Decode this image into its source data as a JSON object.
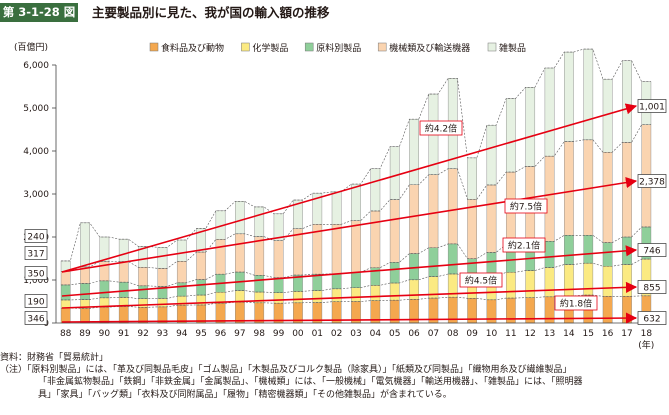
{
  "figure": {
    "number": "第 3-1-28 図",
    "title": "主要製品別に見た、我が国の輸入額の推移"
  },
  "chart_data": {
    "type": "bar",
    "stacked": true,
    "unit_label": "(百億円)",
    "xunit_label": "(年)",
    "categories": [
      "88",
      "89",
      "90",
      "91",
      "92",
      "93",
      "94",
      "95",
      "96",
      "97",
      "98",
      "99",
      "00",
      "01",
      "02",
      "03",
      "04",
      "05",
      "06",
      "07",
      "08",
      "09",
      "10",
      "11",
      "12",
      "13",
      "14",
      "15",
      "16",
      "17",
      "18"
    ],
    "ylim": [
      0,
      6000
    ],
    "yticks": [
      0,
      1000,
      2000,
      3000,
      4000,
      5000,
      6000
    ],
    "ytick_labels": [
      "0",
      "1,000",
      "2,000",
      "3,000",
      "4,000",
      "5,000",
      "6,000"
    ],
    "legend_position": "top",
    "series": [
      {
        "name": "食料品及び動物",
        "color": "#f4a84f",
        "values": [
          346,
          340,
          370,
          385,
          365,
          375,
          415,
          420,
          460,
          485,
          470,
          460,
          470,
          475,
          495,
          500,
          520,
          530,
          550,
          580,
          600,
          575,
          540,
          580,
          590,
          610,
          630,
          650,
          620,
          620,
          632
        ]
      },
      {
        "name": "化学製品",
        "color": "#fbea82",
        "values": [
          190,
          205,
          215,
          210,
          200,
          195,
          210,
          230,
          255,
          270,
          250,
          245,
          265,
          280,
          300,
          320,
          355,
          400,
          455,
          500,
          540,
          460,
          540,
          600,
          630,
          680,
          730,
          740,
          700,
          740,
          855
        ]
      },
      {
        "name": "原料別製品",
        "color": "#8fcf9a",
        "values": [
          350,
          375,
          395,
          355,
          300,
          280,
          310,
          360,
          420,
          430,
          390,
          350,
          380,
          380,
          350,
          360,
          410,
          480,
          610,
          670,
          700,
          460,
          560,
          650,
          600,
          610,
          680,
          650,
          550,
          640,
          746
        ]
      },
      {
        "name": "機械類及び輸送機器",
        "color": "#fad4b0",
        "values": [
          317,
          385,
          450,
          480,
          430,
          420,
          500,
          640,
          810,
          890,
          900,
          860,
          1080,
          1160,
          1150,
          1200,
          1320,
          1460,
          1600,
          1700,
          1750,
          1380,
          1570,
          1680,
          1820,
          1980,
          2180,
          2220,
          2100,
          2200,
          2378
        ]
      },
      {
        "name": "雑製品",
        "color": "#e6f1e2",
        "values": [
          240,
          1025,
          570,
          520,
          485,
          490,
          495,
          550,
          665,
          755,
          690,
          625,
          665,
          725,
          755,
          850,
          985,
          1230,
          1525,
          1875,
          2100,
          965,
          1390,
          1710,
          1840,
          2050,
          2080,
          2110,
          1700,
          1900,
          1001
        ]
      }
    ],
    "labels_start": [
      "240",
      "317",
      "350",
      "190",
      "346"
    ],
    "labels_end": [
      "1,001",
      "2,378",
      "746",
      "855",
      "632"
    ],
    "growth_annotations": [
      {
        "text": "約4.2倍",
        "series": "雑製品"
      },
      {
        "text": "約7.5倍",
        "series": "機械類及び輸送機器"
      },
      {
        "text": "約2.1倍",
        "series": "原料別製品"
      },
      {
        "text": "約4.5倍",
        "series": "化学製品"
      },
      {
        "text": "約1.8倍",
        "series": "食料品及び動物"
      }
    ],
    "colors": {
      "arrow": "#e60012",
      "bar_edge": "#7d7d7d",
      "dash": "#555555",
      "axis": "#444444"
    }
  },
  "notes": {
    "source": "資料：財務省「貿易統計」",
    "line1": "（注）「原料別製品」には、「革及び同製品毛皮」「ゴム製品」「木製品及びコルク製品（除家具）」「紙類及び同製品」「織物用糸及び繊維製品」",
    "line2": "「非金属鉱物製品」「鉄鋼」「非鉄金属」「金属製品」、「機械類」には、「一般機械」「電気機器」「輸送用機器」、「雑製品」には、「照明器",
    "line3": "具」「家具」「バッグ類」「衣料及び同附属品」「履物」「精密機器類」「その他雑製品」が含まれている。"
  }
}
